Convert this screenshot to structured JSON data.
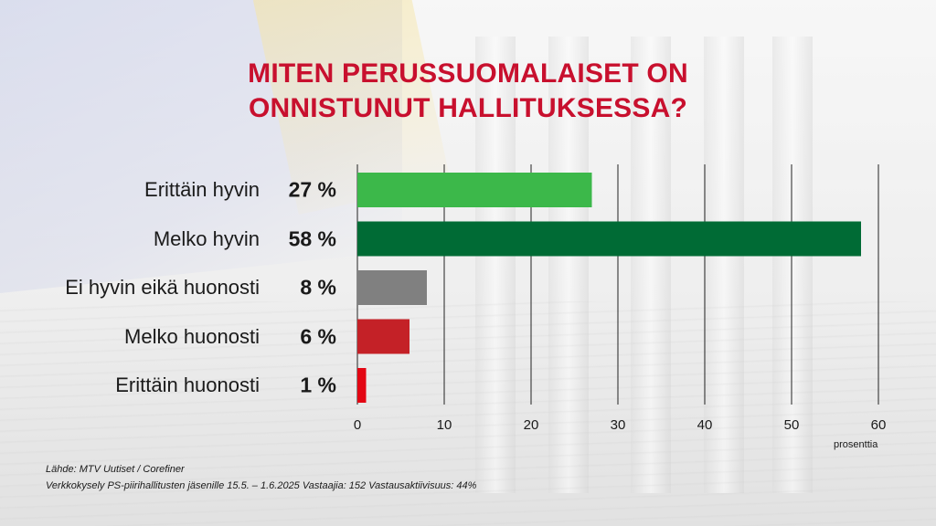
{
  "title_lines": [
    "MITEN PERUSSUOMALAISET ON",
    "ONNISTUNUT HALLITUKSESSA?"
  ],
  "chart_data": {
    "type": "bar",
    "orientation": "horizontal",
    "categories": [
      "Erittäin hyvin",
      "Melko hyvin",
      "Ei hyvin eikä huonosti",
      "Melko huonosti",
      "Erittäin huonosti"
    ],
    "values": [
      27,
      58,
      8,
      6,
      1
    ],
    "value_labels": [
      "27 %",
      "58 %",
      "8 %",
      "6 %",
      "1 %"
    ],
    "colors": [
      "#3cb84a",
      "#006b35",
      "#808080",
      "#c42127",
      "#e30613"
    ],
    "xlim": [
      0,
      60
    ],
    "xticks": [
      0,
      10,
      20,
      30,
      40,
      50,
      60
    ],
    "xlabel": "prosenttia",
    "grid": true
  },
  "footnotes": {
    "source": "Lähde: MTV Uutiset / Corefiner",
    "survey": "Verkkokysely PS-piirihallitusten jäsenille 15.5. – 1.6.2025 Vastaajia: 152 Vastausaktiivisuus: 44%"
  }
}
